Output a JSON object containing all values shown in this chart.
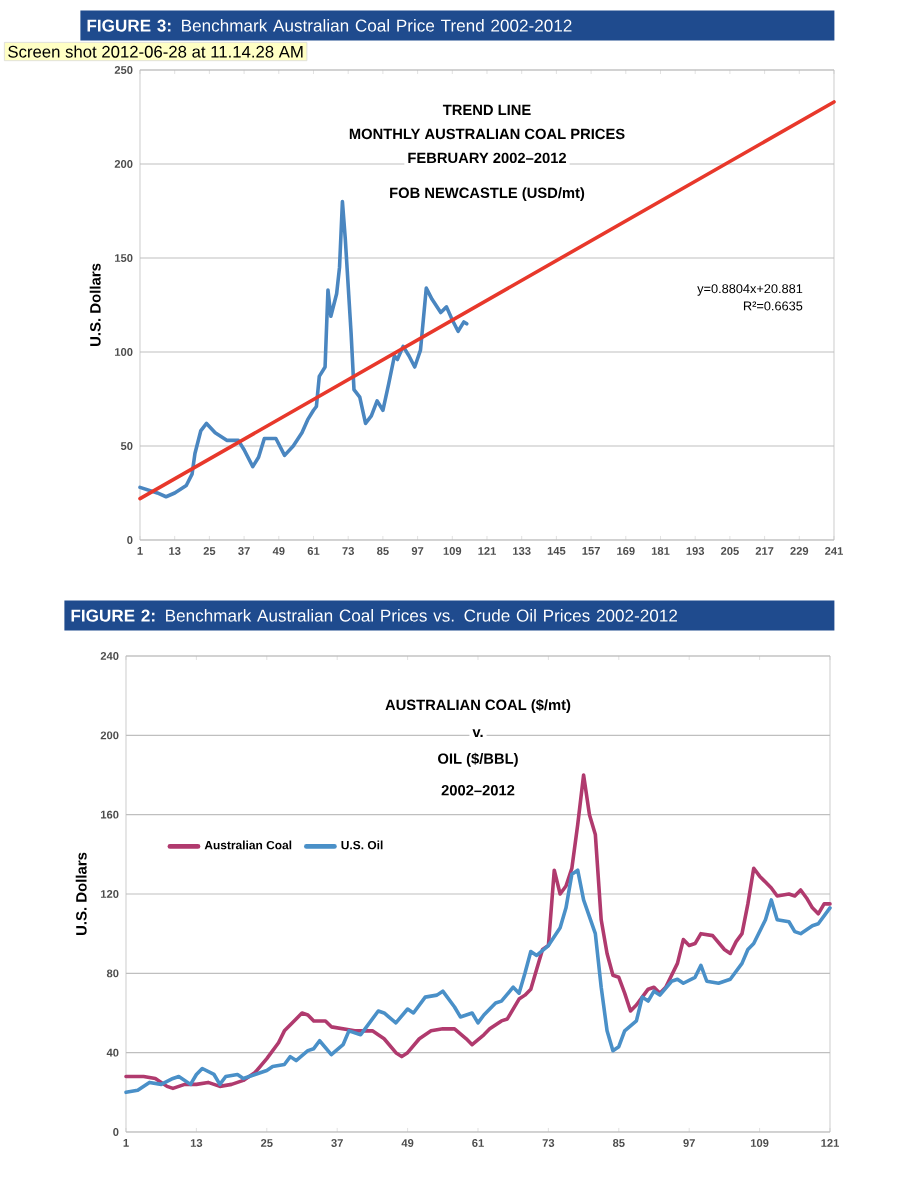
{
  "chart_data": [
    {
      "type": "line",
      "title": "**FIGURE 3:** Benchmark Australian Coal Price Trend 2002-2012",
      "ylabel": "U.S. Dollars",
      "annotations": [
        "TREND LINE",
        "MONTHLY AUSTRALIAN COAL PRICES",
        "FEBRUARY 2002–2012",
        "FOB NEWCASTLE (USD/mt)",
        "y=0.8804x+20.881",
        "R²=0.6635",
        "Screen shot 2012-06-28 at 11.14.28 AM"
      ],
      "xlim": [
        1,
        241
      ],
      "xticks": [
        1,
        13,
        25,
        37,
        49,
        61,
        73,
        85,
        97,
        109,
        121,
        133,
        145,
        157,
        169,
        181,
        193,
        205,
        217,
        229,
        241
      ],
      "ylim": [
        0,
        250
      ],
      "yticks": [
        0,
        50,
        100,
        150,
        200,
        250
      ],
      "grid": "y",
      "series": [
        {
          "color": "#4a86c0",
          "x": [
            1,
            7,
            10,
            13,
            17,
            19,
            20,
            22,
            24,
            27,
            31,
            35,
            37,
            40,
            42,
            44,
            48,
            51,
            54,
            57,
            59,
            61,
            62,
            63,
            65,
            66,
            67,
            69,
            70,
            71,
            72,
            74,
            75,
            77,
            79,
            81,
            83,
            85,
            87,
            89,
            90,
            92,
            94,
            96,
            98,
            100,
            102,
            105,
            107,
            109,
            111,
            113,
            114
          ],
          "values": [
            28,
            25,
            23,
            25,
            29,
            35,
            46,
            58,
            62,
            57,
            53,
            53,
            48,
            39,
            44,
            54,
            54,
            45,
            50,
            57,
            64,
            69,
            71,
            87,
            92,
            133,
            119,
            131,
            145,
            180,
            160,
            110,
            80,
            76,
            62,
            66,
            74,
            69,
            83,
            98,
            96,
            103,
            98,
            92,
            101,
            134,
            128,
            121,
            124,
            117,
            111,
            116,
            115
          ]
        },
        {
          "color": "#e8382b",
          "x": [
            1,
            241
          ],
          "values": [
            22,
            233
          ]
        }
      ]
    },
    {
      "type": "line",
      "title": "**FIGURE 2:** Benchmark Australian Coal Prices vs. Crude Oil Prices 2002-2012",
      "ylabel": "U.S. Dollars",
      "annotations": [
        "AUSTRALIAN COAL ($/mt)",
        "v.",
        "OIL ($/BBL)",
        "2002–2012"
      ],
      "xlim": [
        1,
        121
      ],
      "xticks": [
        1,
        13,
        25,
        37,
        49,
        61,
        73,
        85,
        97,
        109,
        121
      ],
      "ylim": [
        0,
        240
      ],
      "yticks": [
        0,
        40,
        80,
        120,
        160,
        200,
        240
      ],
      "grid": "y",
      "legend": "top left",
      "series": [
        {
          "name": "Australian Coal",
          "color": "#b03a6e",
          "x": [
            1,
            4,
            6,
            8,
            9,
            11,
            13,
            15,
            17,
            19,
            21,
            23,
            25,
            27,
            28,
            30,
            31,
            32,
            33,
            35,
            36,
            38,
            40,
            43,
            45,
            47,
            48,
            49,
            51,
            53,
            55,
            57,
            59,
            60,
            62,
            63,
            65,
            66,
            68,
            69,
            70,
            71,
            72,
            73,
            74,
            75,
            76,
            77,
            78,
            79,
            80,
            81,
            82,
            83,
            84,
            85,
            86,
            87,
            88,
            89,
            90,
            91,
            92,
            93,
            94,
            95,
            96,
            97,
            98,
            99,
            101,
            103,
            104,
            105,
            106,
            107,
            108,
            109,
            110,
            111,
            112,
            114,
            115,
            116,
            117,
            118,
            119,
            120,
            121
          ],
          "values": [
            28,
            28,
            27,
            23,
            22,
            24,
            24,
            25,
            23,
            24,
            26,
            30,
            37,
            45,
            51,
            57,
            60,
            59,
            56,
            56,
            53,
            52,
            51,
            51,
            47,
            40,
            38,
            40,
            47,
            51,
            52,
            52,
            47,
            44,
            49,
            52,
            56,
            57,
            67,
            69,
            72,
            82,
            92,
            94,
            132,
            120,
            124,
            133,
            155,
            180,
            160,
            150,
            107,
            90,
            79,
            78,
            70,
            61,
            64,
            68,
            72,
            73,
            70,
            73,
            79,
            85,
            97,
            94,
            95,
            100,
            99,
            92,
            90,
            96,
            100,
            115,
            133,
            129,
            126,
            123,
            119,
            120,
            119,
            122,
            118,
            113,
            110,
            115,
            115
          ]
        },
        {
          "name": "U.S. Oil",
          "color": "#4a90c8",
          "x": [
            1,
            3,
            5,
            7,
            9,
            10,
            12,
            13,
            14,
            16,
            17,
            18,
            20,
            21,
            23,
            25,
            26,
            28,
            29,
            30,
            32,
            33,
            34,
            36,
            38,
            39,
            41,
            42,
            44,
            45,
            47,
            49,
            50,
            52,
            54,
            55,
            57,
            58,
            59,
            60,
            61,
            62,
            64,
            65,
            67,
            68,
            69,
            70,
            71,
            73,
            75,
            76,
            77,
            78,
            79,
            81,
            82,
            83,
            84,
            85,
            86,
            88,
            89,
            90,
            91,
            92,
            94,
            95,
            96,
            98,
            99,
            100,
            102,
            104,
            106,
            107,
            108,
            110,
            111,
            112,
            114,
            115,
            116,
            118,
            119,
            121
          ],
          "values": [
            20,
            21,
            25,
            24,
            27,
            28,
            24,
            29,
            32,
            29,
            24,
            28,
            29,
            27,
            29,
            31,
            33,
            34,
            38,
            36,
            41,
            42,
            46,
            39,
            44,
            51,
            49,
            53,
            61,
            60,
            55,
            62,
            60,
            68,
            69,
            71,
            63,
            58,
            59,
            60,
            55,
            59,
            65,
            66,
            73,
            70,
            80,
            91,
            89,
            94,
            103,
            113,
            130,
            132,
            117,
            100,
            73,
            51,
            41,
            43,
            51,
            56,
            68,
            66,
            71,
            69,
            76,
            77,
            75,
            78,
            84,
            76,
            75,
            77,
            85,
            92,
            95,
            107,
            117,
            107,
            106,
            101,
            100,
            104,
            105,
            113
          ]
        }
      ]
    }
  ]
}
